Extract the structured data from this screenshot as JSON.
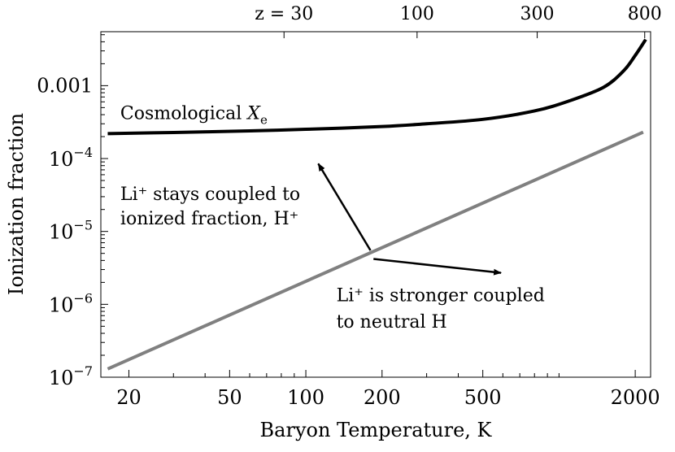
{
  "chart_data": {
    "type": "line",
    "xlabel": "Baryon Temperature, K",
    "ylabel": "Ionization fraction",
    "x_scale": "log",
    "y_scale": "log",
    "xlim": [
      15.5,
      2300
    ],
    "ylim": [
      1e-07,
      0.0055
    ],
    "x_ticks": [
      {
        "value": 20,
        "label": "20"
      },
      {
        "value": 50,
        "label": "50"
      },
      {
        "value": 100,
        "label": "100"
      },
      {
        "value": 200,
        "label": "200"
      },
      {
        "value": 500,
        "label": "500"
      },
      {
        "value": 2000,
        "label": "2000"
      }
    ],
    "y_ticks": [
      {
        "value": 1e-07,
        "base": "10",
        "exp": "−7"
      },
      {
        "value": 1e-06,
        "base": "10",
        "exp": "−6"
      },
      {
        "value": 1e-05,
        "base": "10",
        "exp": "−5"
      },
      {
        "value": 0.0001,
        "base": "10",
        "exp": "−4"
      },
      {
        "value": 0.001,
        "label": "0.001"
      }
    ],
    "top_axis": {
      "ticks": [
        {
          "value": 82,
          "label": "z = 30"
        },
        {
          "value": 275,
          "label": "100"
        },
        {
          "value": 820,
          "label": "300"
        },
        {
          "value": 2180,
          "label": "800"
        }
      ]
    },
    "series": [
      {
        "name": "Cosmological X_e",
        "color": "#000000",
        "x": [
          16.5,
          30,
          60,
          100,
          200,
          300,
          500,
          800,
          1100,
          1500,
          1800,
          2000,
          2200
        ],
        "y": [
          0.00022,
          0.000228,
          0.00024,
          0.000252,
          0.000275,
          0.0003,
          0.000345,
          0.00045,
          0.00062,
          0.00095,
          0.0016,
          0.0026,
          0.0043
        ]
      },
      {
        "color": "#808080",
        "x": [
          16.5,
          2150
        ],
        "y": [
          1.3e-07,
          0.00023
        ]
      }
    ],
    "series_label": {
      "text": "Cosmological ",
      "var": "X",
      "sub": "e",
      "x": 18.5,
      "y": 0.00035
    },
    "annotations": [
      {
        "lines": [
          "Li⁺ stays coupled to",
          "ionized fraction, H⁺"
        ],
        "text_x": 18.5,
        "text_y": [
          2.7e-05,
          1.25e-05
        ],
        "arrow_from": [
          180,
          5.5e-06
        ],
        "arrow_to": [
          112,
          8.5e-05
        ]
      },
      {
        "lines": [
          "Li⁺ is stronger coupled",
          "to neutral H"
        ],
        "text_x": 132,
        "text_y": [
          1.1e-06,
          4.8e-07
        ],
        "arrow_from": [
          185,
          4.2e-06
        ],
        "arrow_to": [
          590,
          2.7e-06
        ]
      }
    ]
  }
}
